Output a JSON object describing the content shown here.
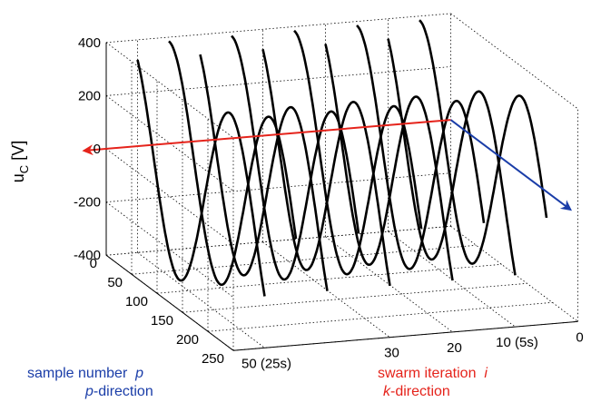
{
  "chart_data": {
    "type": "line",
    "zlabel": "u",
    "zlabel_sub": "C",
    "zlabel_unit": " [V]",
    "z_ticks": [
      "400",
      "200",
      "0",
      "-200",
      "-400"
    ],
    "z_tick_values": [
      400,
      200,
      0,
      -200,
      -400
    ],
    "zlim": [
      -400,
      400
    ],
    "p_ticks": [
      "0",
      "50",
      "100",
      "150",
      "200",
      "250"
    ],
    "p_tick_values": [
      0,
      50,
      100,
      150,
      200,
      250
    ],
    "plim": [
      0,
      250
    ],
    "k_ticks": [
      "50 (25s)",
      "30",
      "20",
      "10 (5s)",
      "0"
    ],
    "k_tick_values": [
      50,
      30,
      20,
      10,
      0
    ],
    "klim": [
      0,
      55
    ],
    "series_k": [
      50,
      45,
      40,
      35,
      30,
      25,
      20,
      15,
      10,
      5
    ],
    "amplitude": 385,
    "period_samples": 200,
    "phase_start_samples": [
      -18,
      0
    ],
    "grid": true
  },
  "captions": {
    "left_line1_text": "sample number",
    "left_line1_var": "p",
    "left_line2_var": "p",
    "left_line2_text": "-direction",
    "right_line1_text": "swarm iteration",
    "right_line1_var": "i",
    "right_line2_var": "k",
    "right_line2_text": "-direction"
  },
  "colors": {
    "curve": "#000000",
    "k_arrow": "#e5231b",
    "p_arrow": "#1a3da8"
  }
}
